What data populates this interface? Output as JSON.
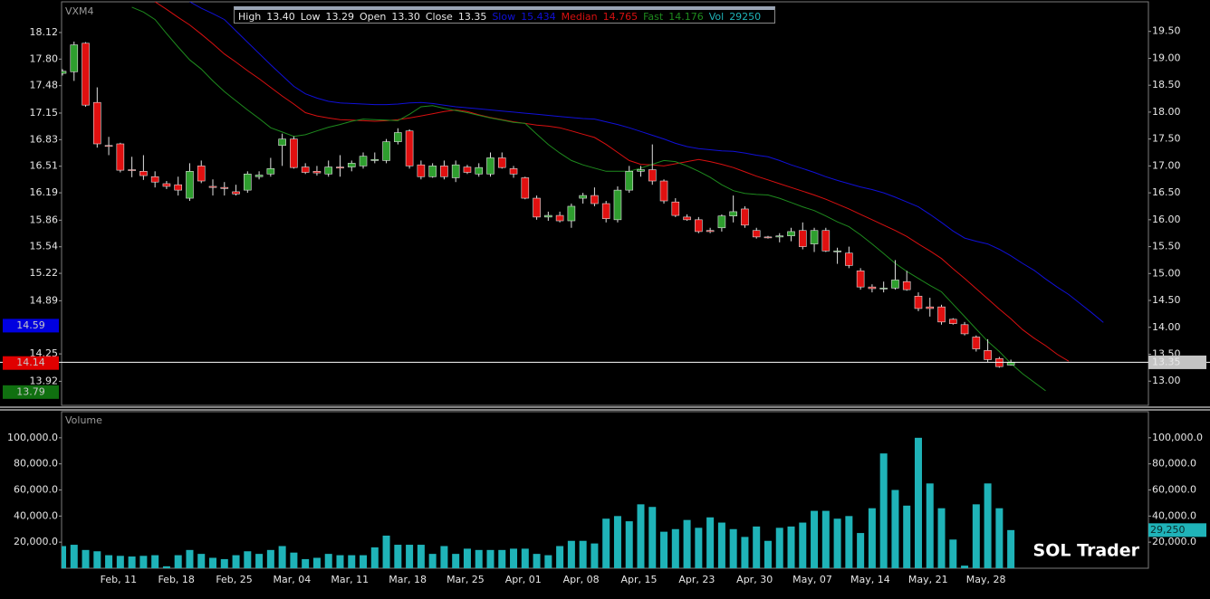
{
  "watermark": "SOL Trader",
  "chart_data": [
    {
      "type": "candlestick",
      "title": "VXM4",
      "header": [
        {
          "label": "High",
          "value": "13.40"
        },
        {
          "label": "Low",
          "value": "13.29"
        },
        {
          "label": "Open",
          "value": "13.30"
        },
        {
          "label": "Close",
          "value": "13.35"
        }
      ],
      "up_color": "#2e9e2e",
      "down_color": "#e01010",
      "wick_color": "#e0e0e0",
      "open": [
        18.72,
        18.75,
        19.28,
        18.18,
        17.38,
        17.41,
        16.93,
        16.9,
        16.8,
        16.67,
        16.65,
        16.4,
        17.0,
        16.62,
        16.6,
        16.52,
        16.55,
        16.8,
        16.85,
        17.38,
        17.5,
        16.98,
        16.9,
        16.85,
        16.98,
        16.98,
        17.0,
        17.1,
        17.1,
        17.45,
        17.65,
        17.02,
        16.8,
        17.0,
        16.78,
        16.98,
        16.85,
        16.85,
        17.15,
        16.95,
        16.78,
        16.4,
        16.05,
        16.08,
        15.98,
        16.4,
        16.45,
        16.3,
        16.0,
        16.55,
        16.9,
        16.93,
        16.72,
        16.33,
        16.05,
        16.0,
        15.8,
        15.85,
        16.07,
        16.2,
        15.8,
        15.68,
        15.68,
        15.7,
        15.8,
        15.55,
        15.8,
        15.42,
        15.38,
        15.05,
        14.75,
        14.72,
        14.73,
        14.85,
        14.58,
        14.38,
        14.38,
        14.15,
        14.05,
        13.82,
        13.57,
        13.42,
        13.3,
        null,
        null,
        null,
        null,
        null,
        null,
        null,
        null
      ],
      "high": [
        18.8,
        19.31,
        19.3,
        18.46,
        17.54,
        17.43,
        17.17,
        17.2,
        16.9,
        16.72,
        16.8,
        17.05,
        17.1,
        16.75,
        16.7,
        16.65,
        16.9,
        16.9,
        17.15,
        17.6,
        17.55,
        17.05,
        17.0,
        17.1,
        17.2,
        17.1,
        17.25,
        17.25,
        17.5,
        17.7,
        17.68,
        17.1,
        17.05,
        17.1,
        17.1,
        17.02,
        17.05,
        17.25,
        17.25,
        17.0,
        16.8,
        16.45,
        16.15,
        16.15,
        16.3,
        16.5,
        16.6,
        16.35,
        16.62,
        17.0,
        17.0,
        17.4,
        16.75,
        16.4,
        16.1,
        16.05,
        15.85,
        16.1,
        16.45,
        16.25,
        15.85,
        15.7,
        15.75,
        15.85,
        15.95,
        15.85,
        15.85,
        15.48,
        15.5,
        15.1,
        14.8,
        14.85,
        15.25,
        15.05,
        14.65,
        14.55,
        14.42,
        14.17,
        14.1,
        13.85,
        13.78,
        13.45,
        13.4,
        null,
        null,
        null,
        null,
        null,
        null,
        null,
        null
      ],
      "low": [
        18.68,
        18.58,
        18.1,
        17.34,
        17.2,
        16.88,
        16.79,
        16.74,
        16.6,
        16.57,
        16.45,
        16.35,
        16.68,
        16.45,
        16.45,
        16.45,
        16.5,
        16.75,
        16.8,
        17.0,
        16.95,
        16.85,
        16.82,
        16.8,
        16.8,
        16.9,
        16.95,
        17.05,
        17.05,
        17.4,
        16.95,
        16.75,
        16.78,
        16.75,
        16.7,
        16.85,
        16.8,
        16.8,
        16.95,
        16.78,
        16.38,
        16.0,
        15.98,
        15.95,
        15.85,
        16.3,
        16.25,
        15.95,
        15.95,
        16.5,
        16.8,
        16.65,
        16.3,
        16.05,
        15.98,
        15.75,
        15.75,
        15.78,
        15.95,
        15.85,
        15.65,
        15.65,
        15.58,
        15.6,
        15.45,
        15.4,
        15.4,
        15.18,
        15.1,
        14.7,
        14.65,
        14.65,
        14.7,
        14.68,
        14.3,
        14.2,
        14.05,
        14.05,
        13.85,
        13.55,
        13.35,
        13.25,
        13.29,
        null,
        null,
        null,
        null,
        null,
        null,
        null,
        null
      ],
      "close": [
        18.76,
        19.25,
        18.13,
        17.41,
        17.37,
        16.92,
        16.92,
        16.82,
        16.7,
        16.62,
        16.55,
        16.9,
        16.72,
        16.6,
        16.58,
        16.48,
        16.85,
        16.83,
        16.95,
        17.5,
        16.97,
        16.88,
        16.87,
        16.98,
        16.96,
        17.05,
        17.18,
        17.12,
        17.45,
        17.62,
        17.0,
        16.8,
        17.0,
        16.8,
        17.02,
        16.88,
        16.97,
        17.15,
        16.97,
        16.85,
        16.4,
        16.05,
        16.08,
        15.98,
        16.25,
        16.45,
        16.3,
        16.02,
        16.55,
        16.9,
        16.93,
        16.72,
        16.35,
        16.08,
        16.0,
        15.78,
        15.78,
        16.07,
        16.15,
        15.9,
        15.68,
        15.67,
        15.7,
        15.78,
        15.5,
        15.8,
        15.42,
        15.42,
        15.15,
        14.75,
        14.72,
        14.73,
        14.88,
        14.7,
        14.35,
        14.35,
        14.1,
        14.07,
        13.88,
        13.6,
        13.4,
        13.27,
        13.35,
        null,
        null,
        null,
        null,
        null,
        null,
        null,
        null
      ],
      "series": [
        {
          "name": "Slow",
          "legend_value": "15.434",
          "color": "#1010d8",
          "values": [
            null,
            null,
            null,
            null,
            null,
            null,
            null,
            null,
            null,
            null,
            null,
            20.05,
            19.93,
            19.83,
            19.72,
            19.51,
            19.3,
            19.09,
            18.88,
            18.68,
            18.48,
            18.34,
            18.26,
            18.2,
            18.17,
            18.16,
            18.15,
            18.14,
            18.14,
            18.15,
            18.17,
            18.18,
            18.16,
            18.13,
            18.1,
            18.08,
            18.06,
            18.04,
            18.02,
            18.0,
            17.98,
            17.96,
            17.94,
            17.92,
            17.9,
            17.88,
            17.87,
            17.82,
            17.77,
            17.71,
            17.64,
            17.57,
            17.5,
            17.42,
            17.36,
            17.32,
            17.3,
            17.28,
            17.27,
            17.24,
            17.2,
            17.17,
            17.1,
            17.02,
            16.95,
            16.88,
            16.8,
            16.73,
            16.67,
            16.61,
            16.56,
            16.5,
            16.42,
            16.33,
            16.24,
            16.1,
            15.95,
            15.79,
            15.66,
            15.6,
            15.55,
            15.45,
            15.33,
            15.19,
            15.06,
            14.9,
            14.75,
            14.61,
            14.44,
            14.27,
            14.09
          ]
        },
        {
          "name": "Median",
          "legend_value": "14.765",
          "color": "#d81010",
          "values": [
            null,
            null,
            null,
            null,
            null,
            null,
            null,
            null,
            20.05,
            19.91,
            19.76,
            19.62,
            19.45,
            19.27,
            19.08,
            18.93,
            18.77,
            18.62,
            18.46,
            18.3,
            18.15,
            17.99,
            17.93,
            17.89,
            17.86,
            17.85,
            17.84,
            17.83,
            17.84,
            17.86,
            17.89,
            17.93,
            17.97,
            18.01,
            18.04,
            18.01,
            17.95,
            17.9,
            17.86,
            17.82,
            17.79,
            17.76,
            17.74,
            17.71,
            17.65,
            17.59,
            17.53,
            17.4,
            17.25,
            17.1,
            17.03,
            17.02,
            17.0,
            17.04,
            17.08,
            17.12,
            17.08,
            17.03,
            16.97,
            16.89,
            16.81,
            16.74,
            16.67,
            16.6,
            16.53,
            16.46,
            16.38,
            16.29,
            16.2,
            16.1,
            16.0,
            15.9,
            15.8,
            15.69,
            15.55,
            15.42,
            15.28,
            15.09,
            14.91,
            14.72,
            14.53,
            14.34,
            14.16,
            13.96,
            13.8,
            13.66,
            13.5,
            13.37,
            null,
            null,
            null
          ]
        },
        {
          "name": "Fast",
          "legend_value": "14.176",
          "color": "#1e8a1e",
          "values": [
            null,
            null,
            null,
            null,
            null,
            null,
            19.95,
            19.86,
            19.72,
            19.46,
            19.21,
            18.97,
            18.8,
            18.58,
            18.38,
            18.21,
            18.04,
            17.88,
            17.71,
            17.63,
            17.55,
            17.58,
            17.65,
            17.72,
            17.77,
            17.83,
            17.87,
            17.86,
            17.85,
            17.84,
            17.96,
            18.1,
            18.12,
            18.07,
            18.03,
            17.99,
            17.94,
            17.89,
            17.85,
            17.81,
            17.79,
            17.59,
            17.4,
            17.24,
            17.1,
            17.02,
            16.96,
            16.9,
            16.9,
            16.9,
            16.96,
            17.03,
            17.1,
            17.08,
            17.0,
            16.9,
            16.79,
            16.65,
            16.54,
            16.49,
            16.47,
            16.46,
            16.4,
            16.32,
            16.24,
            16.17,
            16.07,
            15.96,
            15.87,
            15.72,
            15.55,
            15.37,
            15.19,
            15.04,
            14.91,
            14.78,
            14.66,
            14.43,
            14.2,
            13.97,
            13.74,
            13.55,
            13.33,
            13.14,
            12.98,
            12.82,
            null,
            null,
            null,
            null,
            null
          ]
        }
      ],
      "ylim": [
        12.55,
        20.05
      ],
      "yticks": [
        {
          "value": 19.5,
          "label": "19.50"
        },
        {
          "value": 19,
          "label": "19.00"
        },
        {
          "value": 18.5,
          "label": "18.50"
        },
        {
          "value": 18,
          "label": "18.00"
        },
        {
          "value": 17.5,
          "label": "17.50"
        },
        {
          "value": 17,
          "label": "17.00"
        },
        {
          "value": 16.5,
          "label": "16.50"
        },
        {
          "value": 16,
          "label": "16.00"
        },
        {
          "value": 15.5,
          "label": "15.50"
        },
        {
          "value": 15,
          "label": "15.00"
        },
        {
          "value": 14.5,
          "label": "14.50"
        },
        {
          "value": 14,
          "label": "14.00"
        },
        {
          "value": 13.5,
          "label": "13.50"
        },
        {
          "value": 13,
          "label": "13.00"
        }
      ],
      "y2lim": [
        13.63,
        18.49
      ],
      "y2ticks": [
        18.12,
        {
          "value": 17.8,
          "label": "17.80"
        },
        17.48,
        17.15,
        16.83,
        16.51,
        16.19,
        15.86,
        15.54,
        15.22,
        14.89,
        14.25,
        13.92
      ],
      "y2_markers": [
        {
          "value": 14.59,
          "color": "#0000e0"
        },
        {
          "value": 14.14,
          "color": "#e00000"
        },
        {
          "value": 13.79,
          "color": "#107010"
        }
      ],
      "grid": false
    },
    {
      "type": "bar",
      "title": "Volume",
      "color": "#1fb3b8",
      "legend_label": "Vol",
      "legend_value": "29250",
      "last_value_label": "29,250",
      "categories": [
        null,
        null,
        null,
        null,
        null,
        "Feb, 11",
        null,
        null,
        null,
        null,
        "Feb, 18",
        null,
        null,
        null,
        null,
        "Feb, 25",
        null,
        null,
        null,
        null,
        "Mar, 04",
        null,
        null,
        null,
        null,
        "Mar, 11",
        null,
        null,
        null,
        null,
        "Mar, 18",
        null,
        null,
        null,
        null,
        "Mar, 25",
        null,
        null,
        null,
        null,
        "Apr, 01",
        null,
        null,
        null,
        null,
        "Apr, 08",
        null,
        null,
        null,
        null,
        "Apr, 15",
        null,
        null,
        null,
        null,
        "Apr, 23",
        null,
        null,
        null,
        null,
        "Apr, 30",
        null,
        null,
        null,
        null,
        "May, 07",
        null,
        null,
        null,
        null,
        "May, 14",
        null,
        null,
        null,
        null,
        "May, 21",
        null,
        null,
        null,
        null,
        "May, 28",
        null,
        null,
        null,
        null,
        null,
        null,
        null,
        null,
        null,
        null
      ],
      "values": [
        17000,
        18000,
        14000,
        13000,
        10000,
        9500,
        9000,
        9500,
        10000,
        1500,
        10000,
        14000,
        11000,
        8000,
        7000,
        10000,
        13000,
        11000,
        14000,
        17000,
        12000,
        7000,
        8000,
        11000,
        10000,
        10000,
        10000,
        16000,
        25000,
        18000,
        18000,
        18000,
        11000,
        17000,
        11000,
        15000,
        14000,
        14000,
        14000,
        15000,
        15000,
        11000,
        10000,
        17000,
        21000,
        21000,
        19000,
        38000,
        40000,
        36000,
        49000,
        47000,
        28000,
        30000,
        37000,
        31000,
        39000,
        35000,
        30000,
        24000,
        32000,
        21000,
        31000,
        32000,
        35000,
        44000,
        44000,
        38000,
        40000,
        27000,
        46000,
        88000,
        60000,
        48000,
        100000,
        65000,
        46000,
        22000,
        2000,
        49000,
        65000,
        46000,
        29250,
        null,
        null,
        null,
        null,
        null,
        null,
        null,
        null
      ],
      "ylim": [
        0,
        120000
      ],
      "yticks": [
        {
          "value": 20000,
          "label": "20,000.0"
        },
        {
          "value": 40000,
          "label": "40,000.0"
        },
        {
          "value": 60000,
          "label": "60,000.0"
        },
        {
          "value": 80000,
          "label": "80,000.0"
        },
        {
          "value": 100000,
          "label": "100,000.0"
        }
      ],
      "grid": false
    }
  ]
}
